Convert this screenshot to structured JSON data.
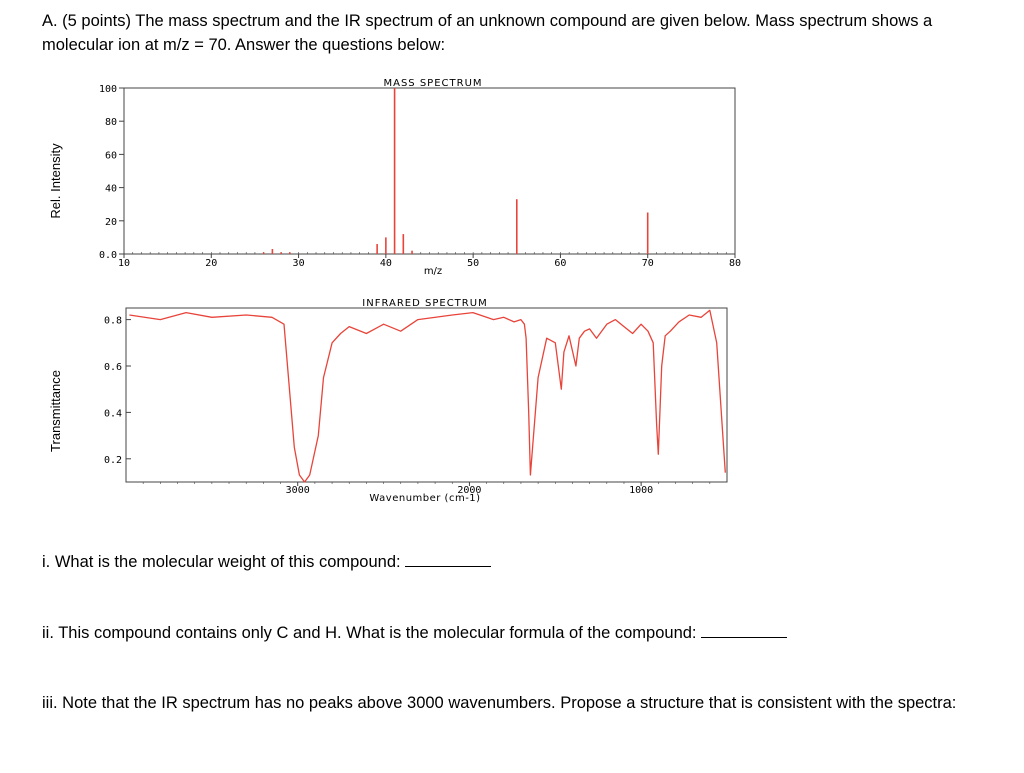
{
  "question": {
    "intro": "A. (5 points) The mass spectrum and the IR spectrum of an unknown compound are given below. Mass spectrum shows a molecular ion at m/z = 70. Answer the questions below:",
    "q1": "i. What is the molecular weight of this compound:",
    "q2": "ii. This compound contains only C and H. What is the molecular formula of the compound:",
    "q3": "iii. Note that the IR spectrum has no peaks above 3000 wavenumbers. Propose a structure that is consistent with the spectra:"
  },
  "side_labels": {
    "ms": "Rel. Intensity",
    "ir": "Transmittance"
  },
  "colors": {
    "line": "#e8443a",
    "axis": "#444444"
  },
  "chart_data": [
    {
      "type": "bar",
      "title": "MASS SPECTRUM",
      "xlabel": "m/z",
      "ylabel": "Rel. Intensity",
      "xlim": [
        10,
        80
      ],
      "ylim": [
        0,
        100
      ],
      "xticks": [
        "10",
        "20",
        "30",
        "40",
        "50",
        "60",
        "70",
        "80"
      ],
      "yticks": [
        "100",
        "80",
        "60",
        "40",
        "20",
        "0.0"
      ],
      "grid": false,
      "x": [
        26,
        27,
        28,
        29,
        39,
        40,
        41,
        42,
        43,
        55,
        70
      ],
      "values": [
        1,
        3,
        1,
        1,
        6,
        10,
        100,
        12,
        2,
        33,
        25
      ]
    },
    {
      "type": "line",
      "title": "INFRARED SPECTRUM",
      "xlabel": "Wavenumber (cm-1)",
      "ylabel": "Transmittance",
      "xlim": [
        4000,
        500
      ],
      "ylim": [
        0.1,
        0.85
      ],
      "xticks": [
        "3000",
        "2000",
        "1000"
      ],
      "yticks": [
        "0.8",
        "0.6",
        "0.4",
        "0.2"
      ],
      "grid": false,
      "x": [
        3980,
        3800,
        3650,
        3500,
        3300,
        3150,
        3080,
        3020,
        2990,
        2960,
        2930,
        2880,
        2850,
        2800,
        2750,
        2700,
        2600,
        2500,
        2400,
        2300,
        2100,
        1980,
        1900,
        1860,
        1800,
        1740,
        1700,
        1680,
        1670,
        1655,
        1645,
        1600,
        1550,
        1500,
        1465,
        1450,
        1420,
        1380,
        1360,
        1330,
        1300,
        1260,
        1200,
        1150,
        1100,
        1050,
        1000,
        960,
        930,
        910,
        900,
        880,
        860,
        830,
        780,
        720,
        650,
        600,
        560,
        520,
        510
      ],
      "y": [
        0.82,
        0.8,
        0.83,
        0.81,
        0.82,
        0.81,
        0.78,
        0.25,
        0.13,
        0.1,
        0.13,
        0.3,
        0.55,
        0.7,
        0.74,
        0.77,
        0.74,
        0.78,
        0.75,
        0.8,
        0.82,
        0.83,
        0.81,
        0.8,
        0.81,
        0.79,
        0.8,
        0.78,
        0.72,
        0.4,
        0.13,
        0.55,
        0.72,
        0.7,
        0.5,
        0.66,
        0.73,
        0.6,
        0.72,
        0.75,
        0.76,
        0.72,
        0.78,
        0.8,
        0.77,
        0.74,
        0.78,
        0.75,
        0.7,
        0.35,
        0.22,
        0.6,
        0.73,
        0.75,
        0.79,
        0.82,
        0.81,
        0.84,
        0.7,
        0.25,
        0.14
      ]
    }
  ]
}
